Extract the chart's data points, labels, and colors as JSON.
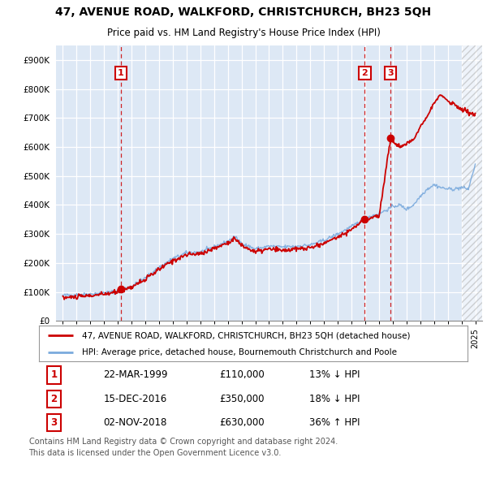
{
  "title": "47, AVENUE ROAD, WALKFORD, CHRISTCHURCH, BH23 5QH",
  "subtitle": "Price paid vs. HM Land Registry's House Price Index (HPI)",
  "red_label": "47, AVENUE ROAD, WALKFORD, CHRISTCHURCH, BH23 5QH (detached house)",
  "blue_label": "HPI: Average price, detached house, Bournemouth Christchurch and Poole",
  "footer": "Contains HM Land Registry data © Crown copyright and database right 2024.\nThis data is licensed under the Open Government Licence v3.0.",
  "transactions": [
    {
      "num": 1,
      "date": "22-MAR-1999",
      "price": "£110,000",
      "change": "13% ↓ HPI",
      "year": 1999.22,
      "value": 110000
    },
    {
      "num": 2,
      "date": "15-DEC-2016",
      "price": "£350,000",
      "change": "18% ↓ HPI",
      "year": 2016.96,
      "value": 350000
    },
    {
      "num": 3,
      "date": "02-NOV-2018",
      "price": "£630,000",
      "change": "36% ↑ HPI",
      "year": 2018.84,
      "value": 630000
    }
  ],
  "ylim": [
    0,
    950000
  ],
  "yticks": [
    0,
    100000,
    200000,
    300000,
    400000,
    500000,
    600000,
    700000,
    800000,
    900000
  ],
  "ytick_labels": [
    "£0",
    "£100K",
    "£200K",
    "£300K",
    "£400K",
    "£500K",
    "£600K",
    "£700K",
    "£800K",
    "£900K"
  ],
  "xlim_start": 1994.5,
  "xlim_end": 2025.5,
  "red_color": "#cc0000",
  "blue_color": "#7aaadd",
  "grid_color": "#cccccc",
  "chart_bg_color": "#dde8f5",
  "bg_color": "#ffffff",
  "hatch_start": 2024.0
}
